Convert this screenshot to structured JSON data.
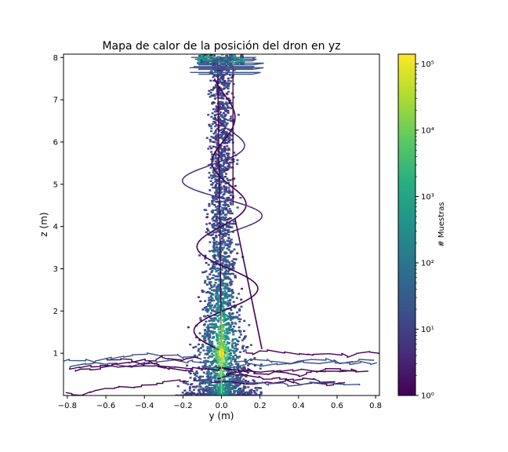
{
  "chart_data": {
    "type": "heatmap",
    "title": "Mapa de calor de la posición del dron en yz",
    "xlabel": "y (m)",
    "ylabel": "z (m)",
    "xlim": [
      -0.82,
      0.82
    ],
    "ylim": [
      0.0,
      8.08
    ],
    "xticks": [
      -0.8,
      -0.6,
      -0.4,
      -0.2,
      0.0,
      0.2,
      0.4,
      0.6,
      0.8
    ],
    "xtick_labels": [
      "−0.8",
      "−0.6",
      "−0.4",
      "−0.2",
      "0.0",
      "0.2",
      "0.4",
      "0.6",
      "0.8"
    ],
    "yticks": [
      1,
      2,
      3,
      4,
      5,
      6,
      7,
      8
    ],
    "ytick_labels": [
      "1",
      "2",
      "3",
      "4",
      "5",
      "6",
      "7",
      "8"
    ],
    "colorbar": {
      "label": "# Muestras",
      "scale": "log",
      "range": [
        1,
        140000
      ],
      "ticks": [
        1,
        10,
        100,
        1000,
        10000,
        100000
      ],
      "tick_labels": [
        "10⁰",
        "10¹",
        "10²",
        "10³",
        "10⁴",
        "10⁵"
      ],
      "colormap": "viridis"
    },
    "grid": false
  }
}
